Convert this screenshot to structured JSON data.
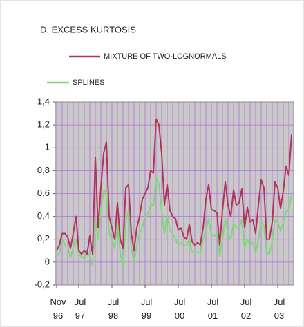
{
  "chart_data": {
    "type": "line",
    "title": "D. EXCESS KURTOSIS",
    "categories": [
      "Nov 96",
      null,
      null,
      null,
      null,
      null,
      null,
      null,
      "Jul 97",
      null,
      null,
      null,
      null,
      null,
      null,
      null,
      null,
      null,
      null,
      null,
      "Jul 98",
      null,
      null,
      null,
      null,
      null,
      null,
      null,
      null,
      null,
      null,
      null,
      "Jul 99",
      null,
      null,
      null,
      null,
      null,
      null,
      null,
      null,
      null,
      null,
      null,
      "Jul 00",
      null,
      null,
      null,
      null,
      null,
      null,
      null,
      null,
      null,
      null,
      null,
      "Jul 01",
      null,
      null,
      null,
      null,
      null,
      null,
      null,
      null,
      null,
      null,
      null,
      "Jul 02",
      null,
      null,
      null,
      null,
      null,
      null,
      null,
      null,
      null,
      null,
      null,
      "Jul 03",
      null,
      null,
      null,
      null,
      null
    ],
    "series": [
      {
        "name": "MIXTURE OF TWO-LOGNORMALS",
        "color": "#b2335a",
        "values": [
          0.1,
          0.15,
          0.25,
          0.25,
          0.22,
          0.12,
          0.25,
          0.4,
          0.1,
          0.07,
          0.1,
          0.07,
          0.23,
          0.07,
          0.92,
          0.3,
          0.65,
          0.95,
          1.05,
          0.4,
          0.3,
          0.2,
          0.52,
          0.2,
          0.12,
          0.65,
          0.68,
          0.25,
          0.1,
          0.3,
          0.4,
          0.55,
          0.6,
          0.65,
          0.8,
          0.78,
          1.25,
          1.2,
          0.95,
          0.5,
          0.68,
          0.45,
          0.4,
          0.38,
          0.28,
          0.3,
          0.22,
          0.2,
          0.33,
          0.18,
          0.15,
          0.17,
          0.15,
          0.3,
          0.55,
          0.68,
          0.46,
          0.45,
          0.43,
          0.15,
          0.45,
          0.7,
          0.5,
          0.4,
          0.63,
          0.5,
          0.52,
          0.64,
          0.3,
          0.48,
          0.35,
          0.37,
          0.25,
          0.5,
          0.72,
          0.65,
          0.2,
          0.2,
          0.35,
          0.7,
          0.65,
          0.47,
          0.62,
          0.84,
          0.76,
          1.12
        ]
      },
      {
        "name": "SPLINES",
        "color": "#80d67a",
        "values": [
          0.05,
          0.08,
          0.2,
          0.15,
          0.13,
          0.04,
          0.12,
          0.2,
          0.07,
          0.05,
          0.03,
          0.1,
          0.05,
          -0.03,
          0.38,
          0.2,
          0.45,
          0.62,
          0.62,
          0.25,
          0.2,
          0.12,
          0.35,
          0.08,
          -0.04,
          0.35,
          0.45,
          0.12,
          0.0,
          0.15,
          0.25,
          0.3,
          0.4,
          0.42,
          0.5,
          0.5,
          0.74,
          0.68,
          0.45,
          0.25,
          0.42,
          0.28,
          0.25,
          0.2,
          0.15,
          0.17,
          0.14,
          0.15,
          0.2,
          0.09,
          0.08,
          0.09,
          0.08,
          0.2,
          0.28,
          0.38,
          0.24,
          0.23,
          0.25,
          0.05,
          0.2,
          0.38,
          0.25,
          0.2,
          0.34,
          0.3,
          0.3,
          0.37,
          0.13,
          0.2,
          0.15,
          0.17,
          0.08,
          0.2,
          0.35,
          0.32,
          0.08,
          0.07,
          0.18,
          0.37,
          0.35,
          0.27,
          0.35,
          0.44,
          0.45,
          0.6
        ]
      }
    ],
    "ylim": [
      -0.2,
      1.4
    ],
    "yticks": [
      {
        "value": -0.2,
        "label": "-0,2"
      },
      0,
      {
        "value": 0.2,
        "label": "0,2"
      },
      {
        "value": 0.4,
        "label": "0,4"
      },
      {
        "value": 0.6,
        "label": "0,6"
      },
      {
        "value": 0.8,
        "label": "0,8"
      },
      1,
      {
        "value": 1.2,
        "label": "1,2"
      },
      {
        "value": 1.4,
        "label": "1,4"
      }
    ],
    "grid": true,
    "grid_color": "#b46fdc",
    "plot_background": "#c9c9c9"
  }
}
